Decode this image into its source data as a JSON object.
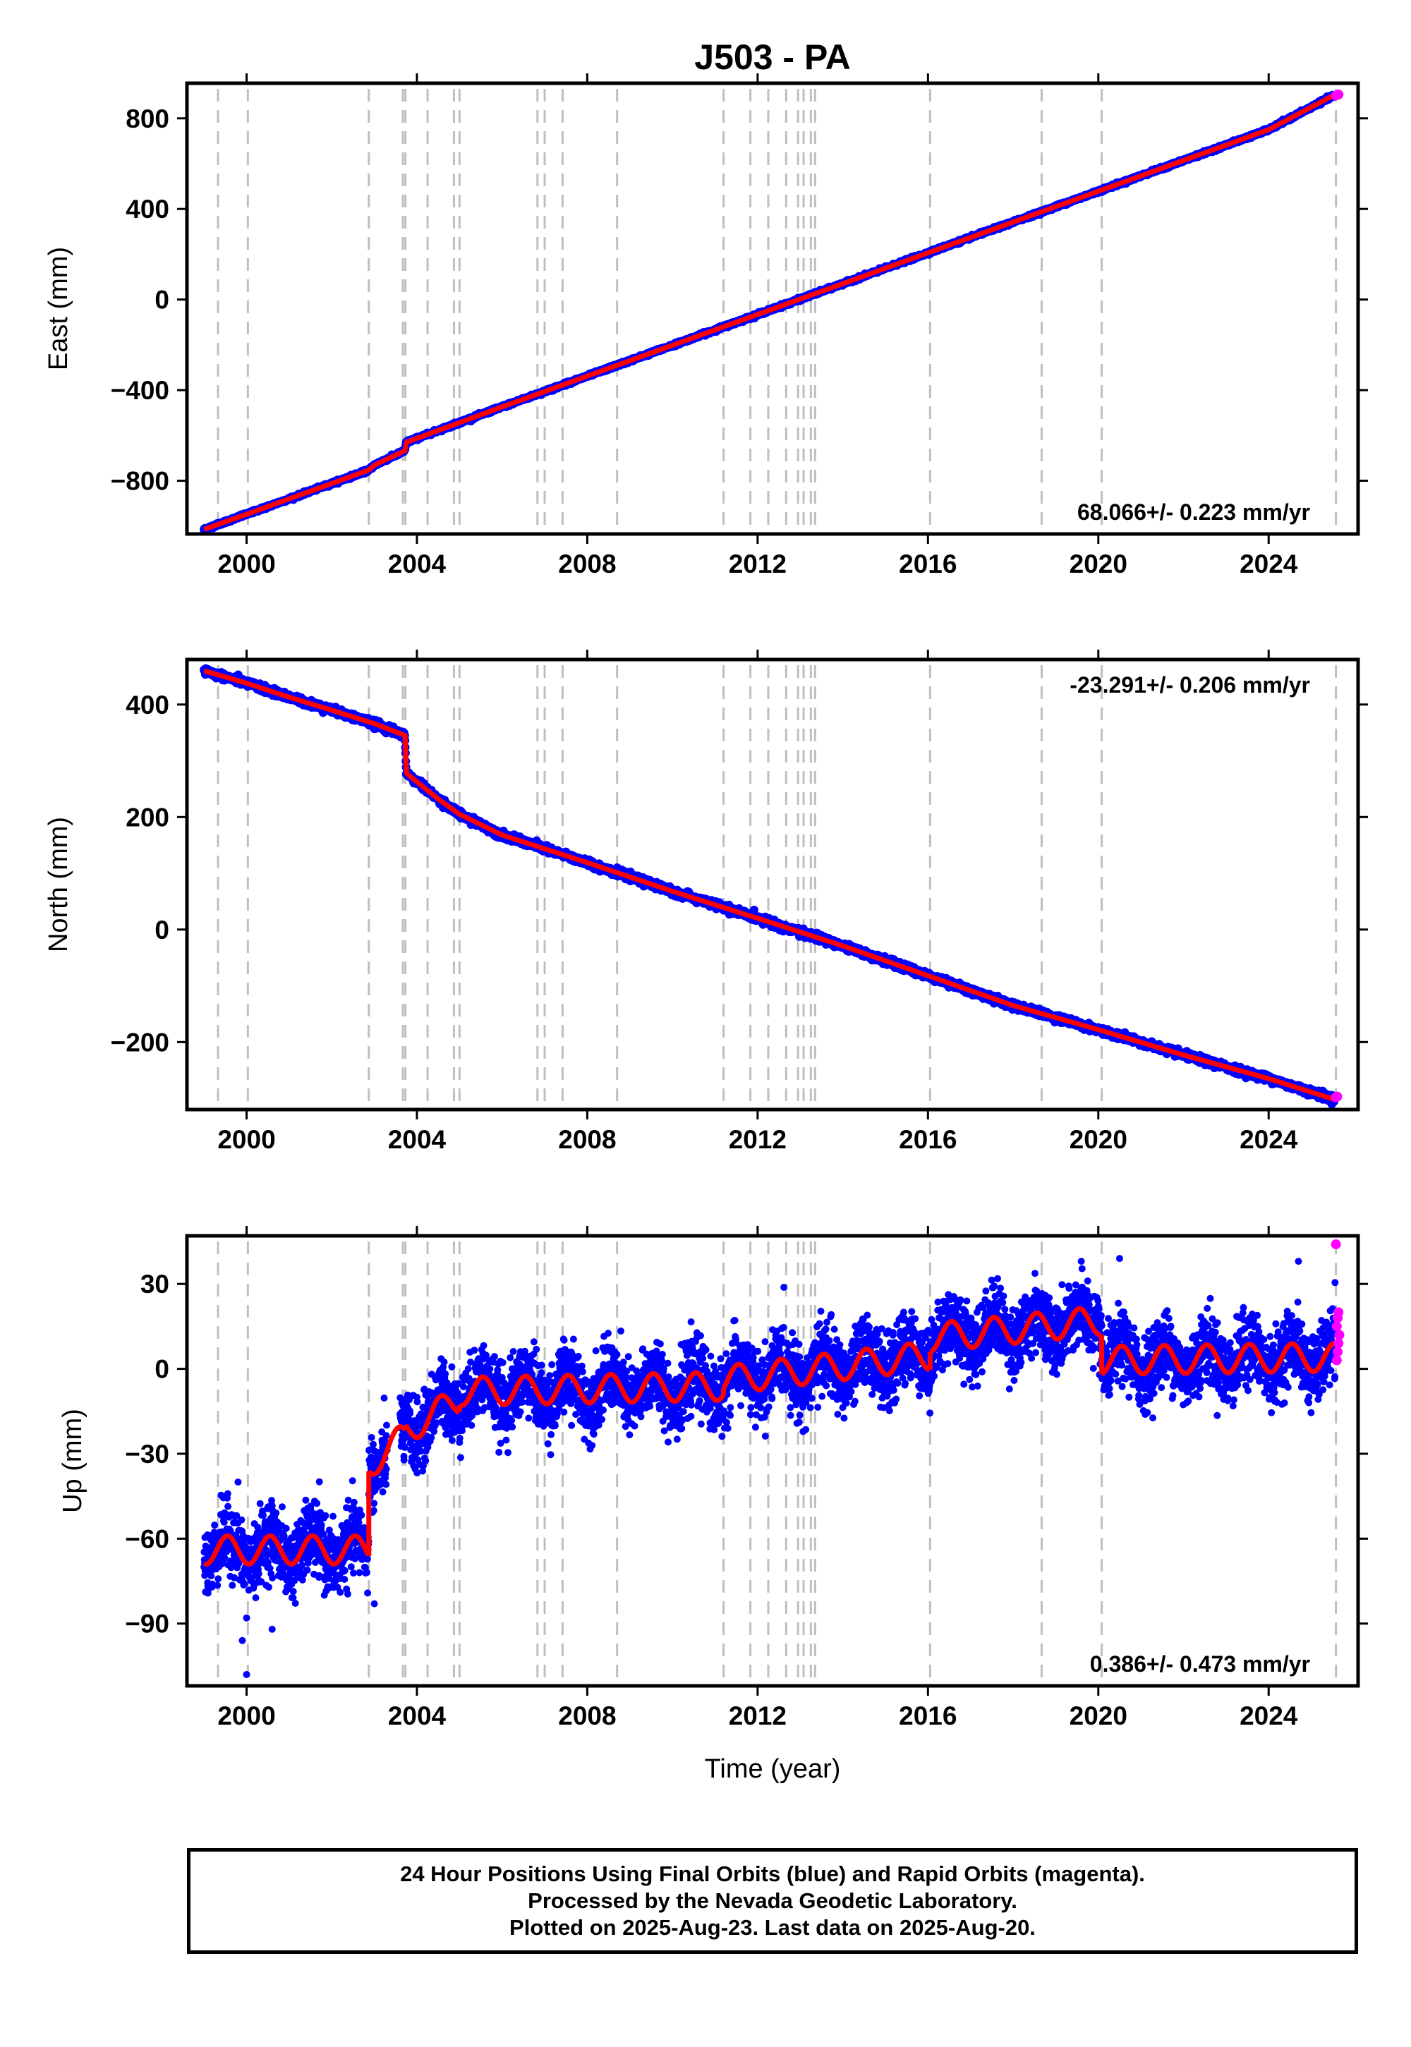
{
  "chart_data": {
    "type": "scatter",
    "title": "J503 - PA",
    "xlabel": "Time (year)",
    "xlim": [
      1998.6,
      2026.1
    ],
    "x_ticks": [
      2000,
      2004,
      2008,
      2012,
      2016,
      2020,
      2024
    ],
    "x_tick_labels": [
      "2000",
      "2004",
      "2008",
      "2012",
      "2016",
      "2020",
      "2024"
    ],
    "event_lines": [
      1999.33,
      2000.03,
      2002.87,
      2003.67,
      2003.73,
      2004.25,
      2004.87,
      2005.0,
      2006.83,
      2007.0,
      2007.42,
      2008.7,
      2011.2,
      2011.83,
      2012.25,
      2012.67,
      2012.95,
      2013.08,
      2013.25,
      2013.35,
      2016.05,
      2018.67,
      2020.08,
      2025.58
    ],
    "grid": false,
    "panels": [
      {
        "name": "east",
        "ylabel": "East (mm)",
        "ylim": [
          -1035,
          955
        ],
        "y_ticks": [
          -800,
          -400,
          0,
          400,
          800
        ],
        "y_tick_labels": [
          "−800",
          "−400",
          "0",
          "400",
          "800"
        ],
        "rate_label": "68.066+/- 0.223 mm/yr",
        "rate_position": "bottom-right",
        "model_breaks": [
          [
            2003.72,
            2003.75,
            -660,
            -628
          ]
        ],
        "series": [
          {
            "name": "Final Orbits",
            "color": "#0000ff",
            "x": [
              1999.0,
              2000.0,
              2001.0,
              2002.0,
              2002.87,
              2003.0,
              2003.72,
              2003.75,
              2004.5,
              2006.0,
              2008.0,
              2010.0,
              2012.0,
              2014.0,
              2016.0,
              2018.0,
              2020.0,
              2022.0,
              2024.0,
              2025.5
            ],
            "y": [
              -1015,
              -948,
              -880,
              -812,
              -753,
              -731,
              -667,
              -630,
              -578,
              -474,
              -338,
              -202,
              -66,
              70,
              206,
              342,
              478,
              614,
              750,
              899
            ]
          },
          {
            "name": "Rapid Orbits",
            "color": "#ff00ff",
            "x": [
              2025.58,
              2025.61,
              2025.64
            ],
            "y": [
              901,
              903,
              905
            ]
          }
        ]
      },
      {
        "name": "north",
        "ylabel": "North (mm)",
        "ylim": [
          -320,
          480
        ],
        "y_ticks": [
          -200,
          0,
          200,
          400
        ],
        "y_tick_labels": [
          "−200",
          "0",
          "200",
          "400"
        ],
        "rate_label": "-23.291+/- 0.206 mm/yr",
        "rate_position": "top-right",
        "model_breaks": [
          [
            2003.72,
            2003.75,
            345,
            278
          ]
        ],
        "series": [
          {
            "name": "Final Orbits",
            "color": "#0000ff",
            "x": [
              1999.0,
              2000.0,
              2001.0,
              2002.0,
              2003.0,
              2003.72,
              2003.75,
              2004.5,
              2005.0,
              2006.0,
              2008.0,
              2010.0,
              2012.0,
              2014.0,
              2016.0,
              2018.0,
              2020.0,
              2022.0,
              2024.0,
              2025.5
            ],
            "y": [
              460,
              438,
              413,
              390,
              366,
              345,
              278,
              232,
              205,
              168,
              119,
              68,
              20,
              -29,
              -82,
              -135,
              -178,
              -223,
              -265,
              -301
            ]
          },
          {
            "name": "Rapid Orbits",
            "color": "#ff00ff",
            "x": [
              2025.58,
              2025.61
            ],
            "y": [
              -298,
              -297
            ]
          }
        ]
      },
      {
        "name": "up",
        "ylabel": "Up (mm)",
        "ylim": [
          -112,
          47
        ],
        "y_ticks": [
          -90,
          -60,
          -30,
          0,
          30
        ],
        "y_tick_labels": [
          "−90",
          "−60",
          "−30",
          "0",
          "30"
        ],
        "rate_label": "0.386+/- 0.473 mm/yr",
        "rate_position": "bottom-right",
        "scatter_sd": 6,
        "seasonal_amp": 5,
        "offsets": [
          {
            "from": 1999.0,
            "to": 2002.87,
            "base": -64,
            "slope": 0
          },
          {
            "from": 2002.87,
            "to": 2003.73,
            "base": -34,
            "slope": 12
          },
          {
            "from": 2003.73,
            "to": 2005.0,
            "base": -22,
            "slope": 9
          },
          {
            "from": 2005.0,
            "to": 2011.2,
            "base": -8,
            "slope": 0.3
          },
          {
            "from": 2011.2,
            "to": 2016.05,
            "base": -4,
            "slope": 1.8
          },
          {
            "from": 2016.05,
            "to": 2020.08,
            "base": 11,
            "slope": 1.5
          },
          {
            "from": 2020.08,
            "to": 2025.58,
            "base": 3,
            "slope": 0.2
          }
        ],
        "data_gap": [
          2003.3,
          2003.6
        ],
        "series": [
          {
            "name": "Final Orbits",
            "color": "#0000ff"
          },
          {
            "name": "Rapid Orbits",
            "color": "#ff00ff",
            "x": [
              2025.58,
              2025.6,
              2025.62,
              2025.64,
              2025.66,
              2025.6,
              2025.62,
              2025.64
            ],
            "y": [
              44,
              3,
              6,
              9,
              12,
              15,
              18,
              20
            ]
          }
        ],
        "outliers": [
          {
            "x": 2000.0,
            "y": -108
          },
          {
            "x": 1999.9,
            "y": -96
          },
          {
            "x": 2000.6,
            "y": -92
          },
          {
            "x": 2000.0,
            "y": -88
          },
          {
            "x": 2003.0,
            "y": -83
          },
          {
            "x": 2005.0,
            "y": -26
          },
          {
            "x": 2011.3,
            "y": -21
          },
          {
            "x": 2024.7,
            "y": 38
          },
          {
            "x": 2020.5,
            "y": 39
          },
          {
            "x": 2019.6,
            "y": 38
          },
          {
            "x": 1999.8,
            "y": -40
          }
        ]
      }
    ]
  },
  "footer": {
    "line1": "24 Hour Positions Using Final Orbits (blue) and Rapid Orbits (magenta).",
    "line2": "Processed by the Nevada Geodetic Laboratory.",
    "line3": "Plotted on 2025-Aug-23. Last data on 2025-Aug-20."
  },
  "colors": {
    "final": "#0000ff",
    "rapid": "#ff00ff",
    "model": "#ff0000",
    "event_line": "#bfbfbf"
  }
}
